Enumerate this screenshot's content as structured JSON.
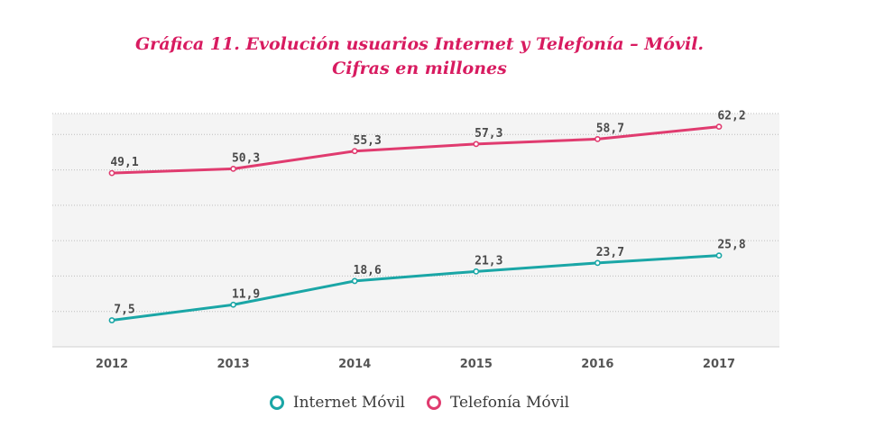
{
  "colors": {
    "title": "#d81b60",
    "internet": "#1aa6a6",
    "telefonia": "#e03b6f",
    "grid": "#bdbdbd",
    "plot_bg": "#f4f4f4"
  },
  "chart_data": {
    "type": "line",
    "title_line1": "Gráfica 11. Evolución usuarios Internet y Telefonía – Móvil.",
    "title_line2": "Cifras en millones",
    "xlabel": "",
    "ylabel": "",
    "categories": [
      "2012",
      "2013",
      "2014",
      "2015",
      "2016",
      "2017"
    ],
    "ylim": [
      0,
      70
    ],
    "grid": true,
    "legend_position": "bottom",
    "series": [
      {
        "name": "Internet Móvil",
        "color_key": "internet",
        "values": [
          7.5,
          11.9,
          18.6,
          21.3,
          23.7,
          25.8
        ],
        "labels": [
          "7,5",
          "11,9",
          "18,6",
          "21,3",
          "23,7",
          "25,8"
        ]
      },
      {
        "name": "Telefonía Móvil",
        "color_key": "telefonia",
        "values": [
          49.1,
          50.3,
          55.3,
          57.3,
          58.7,
          62.2
        ],
        "labels": [
          "49,1",
          "50,3",
          "55,3",
          "57,3",
          "58,7",
          "62,2"
        ]
      }
    ]
  }
}
